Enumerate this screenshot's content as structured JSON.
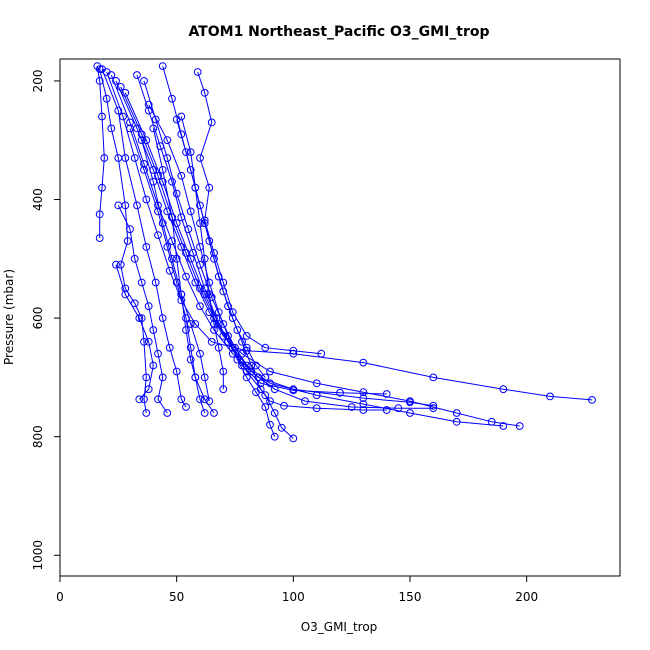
{
  "chart_data": {
    "type": "scatter",
    "title": "ATOM1 Northeast_Pacific O3_GMI_trop",
    "xlabel": "O3_GMI_trop",
    "ylabel": "Pressure (mbar)",
    "xlim": [
      0,
      240
    ],
    "ylim": [
      1035,
      163
    ],
    "y_reversed": true,
    "x_ticks": [
      0,
      50,
      100,
      150,
      200
    ],
    "y_ticks": [
      200,
      400,
      600,
      800,
      1000
    ],
    "grid": false,
    "color": "#0000ff",
    "marker": "open-circle",
    "series": [
      {
        "points": [
          [
            16,
            175
          ],
          [
            17,
            200
          ],
          [
            18,
            260
          ],
          [
            19,
            330
          ],
          [
            18,
            380
          ],
          [
            17,
            425
          ],
          [
            17,
            465
          ]
        ]
      },
      {
        "points": [
          [
            17,
            180
          ],
          [
            20,
            230
          ],
          [
            22,
            280
          ],
          [
            25,
            330
          ],
          [
            28,
            410
          ],
          [
            29,
            470
          ],
          [
            26,
            510
          ],
          [
            28,
            550
          ],
          [
            32,
            575
          ],
          [
            35,
            600
          ],
          [
            36,
            640
          ],
          [
            37,
            700
          ],
          [
            36,
            737
          ],
          [
            37,
            760
          ]
        ]
      },
      {
        "points": [
          [
            18,
            180
          ],
          [
            25,
            250
          ],
          [
            28,
            330
          ],
          [
            33,
            410
          ],
          [
            37,
            480
          ],
          [
            41,
            540
          ],
          [
            44,
            600
          ],
          [
            47,
            650
          ],
          [
            50,
            690
          ],
          [
            52,
            737
          ],
          [
            54,
            750
          ]
        ]
      },
      {
        "points": [
          [
            20,
            185
          ],
          [
            27,
            260
          ],
          [
            32,
            330
          ],
          [
            37,
            400
          ],
          [
            42,
            460
          ],
          [
            47,
            520
          ],
          [
            52,
            570
          ],
          [
            58,
            610
          ],
          [
            65,
            640
          ],
          [
            80,
            655
          ],
          [
            100,
            660
          ],
          [
            130,
            675
          ],
          [
            160,
            700
          ],
          [
            190,
            720
          ],
          [
            210,
            732
          ],
          [
            228,
            738
          ]
        ]
      },
      {
        "points": [
          [
            22,
            190
          ],
          [
            30,
            270
          ],
          [
            36,
            340
          ],
          [
            42,
            410
          ],
          [
            48,
            470
          ],
          [
            54,
            530
          ],
          [
            60,
            580
          ],
          [
            66,
            620
          ],
          [
            74,
            660
          ],
          [
            85,
            700
          ],
          [
            100,
            720
          ],
          [
            130,
            735
          ],
          [
            150,
            742
          ],
          [
            160,
            748
          ]
        ]
      },
      {
        "points": [
          [
            24,
            200
          ],
          [
            33,
            280
          ],
          [
            40,
            350
          ],
          [
            46,
            420
          ],
          [
            52,
            480
          ],
          [
            58,
            540
          ],
          [
            64,
            590
          ],
          [
            70,
            630
          ],
          [
            78,
            660
          ],
          [
            90,
            690
          ],
          [
            110,
            710
          ],
          [
            130,
            725
          ],
          [
            150,
            740
          ],
          [
            170,
            760
          ],
          [
            185,
            775
          ],
          [
            197,
            782
          ]
        ]
      },
      {
        "points": [
          [
            26,
            210
          ],
          [
            35,
            290
          ],
          [
            42,
            360
          ],
          [
            48,
            430
          ],
          [
            54,
            490
          ],
          [
            60,
            550
          ],
          [
            66,
            600
          ],
          [
            72,
            640
          ],
          [
            80,
            680
          ],
          [
            90,
            710
          ],
          [
            110,
            730
          ],
          [
            130,
            745
          ],
          [
            150,
            760
          ],
          [
            170,
            775
          ],
          [
            190,
            782
          ]
        ]
      },
      {
        "points": [
          [
            28,
            220
          ],
          [
            37,
            300
          ],
          [
            44,
            370
          ],
          [
            50,
            440
          ],
          [
            56,
            500
          ],
          [
            62,
            560
          ],
          [
            68,
            610
          ],
          [
            74,
            650
          ],
          [
            80,
            690
          ],
          [
            88,
            730
          ],
          [
            92,
            760
          ],
          [
            95,
            785
          ],
          [
            100,
            803
          ]
        ]
      },
      {
        "points": [
          [
            44,
            175
          ],
          [
            48,
            230
          ],
          [
            52,
            290
          ],
          [
            56,
            350
          ],
          [
            60,
            410
          ],
          [
            64,
            470
          ],
          [
            68,
            530
          ],
          [
            72,
            580
          ],
          [
            76,
            620
          ],
          [
            80,
            650
          ],
          [
            84,
            680
          ],
          [
            88,
            700
          ]
        ]
      },
      {
        "points": [
          [
            59,
            185
          ],
          [
            62,
            220
          ],
          [
            65,
            270
          ],
          [
            60,
            330
          ],
          [
            64,
            380
          ],
          [
            62,
            435
          ],
          [
            66,
            490
          ],
          [
            70,
            540
          ],
          [
            74,
            590
          ],
          [
            80,
            630
          ],
          [
            88,
            650
          ],
          [
            100,
            655
          ],
          [
            112,
            660
          ]
        ]
      },
      {
        "points": [
          [
            38,
            240
          ],
          [
            46,
            300
          ],
          [
            52,
            360
          ],
          [
            56,
            420
          ],
          [
            60,
            480
          ],
          [
            64,
            540
          ],
          [
            68,
            590
          ],
          [
            72,
            630
          ],
          [
            76,
            670
          ],
          [
            80,
            700
          ],
          [
            84,
            725
          ],
          [
            88,
            750
          ],
          [
            90,
            780
          ],
          [
            92,
            800
          ]
        ]
      },
      {
        "points": [
          [
            50,
            265
          ],
          [
            54,
            320
          ],
          [
            58,
            380
          ],
          [
            62,
            440
          ],
          [
            66,
            500
          ],
          [
            70,
            555
          ],
          [
            74,
            600
          ],
          [
            78,
            640
          ],
          [
            82,
            680
          ],
          [
            86,
            720
          ],
          [
            90,
            740
          ],
          [
            96,
            748
          ],
          [
            110,
            752
          ],
          [
            130,
            755
          ],
          [
            140,
            755
          ]
        ]
      },
      {
        "points": [
          [
            30,
            280
          ],
          [
            36,
            350
          ],
          [
            42,
            420
          ],
          [
            46,
            480
          ],
          [
            50,
            540
          ],
          [
            54,
            600
          ],
          [
            56,
            650
          ],
          [
            58,
            700
          ],
          [
            62,
            737
          ],
          [
            66,
            760
          ]
        ]
      },
      {
        "points": [
          [
            35,
            300
          ],
          [
            40,
            370
          ],
          [
            44,
            440
          ],
          [
            48,
            500
          ],
          [
            52,
            560
          ],
          [
            56,
            610
          ],
          [
            60,
            660
          ],
          [
            62,
            700
          ],
          [
            64,
            740
          ]
        ]
      },
      {
        "points": [
          [
            25,
            410
          ],
          [
            30,
            450
          ],
          [
            32,
            500
          ],
          [
            35,
            540
          ],
          [
            38,
            580
          ],
          [
            40,
            620
          ],
          [
            42,
            660
          ],
          [
            44,
            700
          ],
          [
            42,
            737
          ],
          [
            46,
            760
          ]
        ]
      },
      {
        "points": [
          [
            24,
            510
          ],
          [
            28,
            560
          ],
          [
            34,
            600
          ],
          [
            38,
            640
          ],
          [
            40,
            680
          ],
          [
            38,
            720
          ],
          [
            34,
            737
          ]
        ]
      },
      {
        "points": [
          [
            40,
            280
          ],
          [
            44,
            350
          ],
          [
            48,
            430
          ],
          [
            50,
            500
          ],
          [
            52,
            560
          ],
          [
            54,
            620
          ],
          [
            56,
            670
          ],
          [
            58,
            700
          ],
          [
            60,
            737
          ],
          [
            62,
            760
          ]
        ]
      },
      {
        "points": [
          [
            33,
            190
          ],
          [
            38,
            250
          ],
          [
            43,
            310
          ],
          [
            48,
            370
          ],
          [
            52,
            430
          ],
          [
            57,
            490
          ],
          [
            62,
            550
          ],
          [
            67,
            600
          ],
          [
            72,
            640
          ],
          [
            78,
            680
          ],
          [
            86,
            710
          ],
          [
            100,
            722
          ],
          [
            120,
            726
          ],
          [
            140,
            728
          ]
        ]
      },
      {
        "points": [
          [
            36,
            200
          ],
          [
            41,
            265
          ],
          [
            46,
            330
          ],
          [
            50,
            390
          ],
          [
            55,
            450
          ],
          [
            60,
            510
          ],
          [
            65,
            565
          ],
          [
            70,
            610
          ],
          [
            75,
            650
          ],
          [
            82,
            690
          ],
          [
            92,
            720
          ],
          [
            105,
            740
          ],
          [
            125,
            750
          ],
          [
            145,
            752
          ],
          [
            160,
            752
          ]
        ]
      },
      {
        "points": [
          [
            52,
            260
          ],
          [
            56,
            320
          ],
          [
            58,
            380
          ],
          [
            60,
            440
          ],
          [
            62,
            500
          ],
          [
            64,
            560
          ],
          [
            66,
            610
          ],
          [
            68,
            650
          ],
          [
            70,
            690
          ],
          [
            70,
            720
          ]
        ]
      }
    ]
  }
}
